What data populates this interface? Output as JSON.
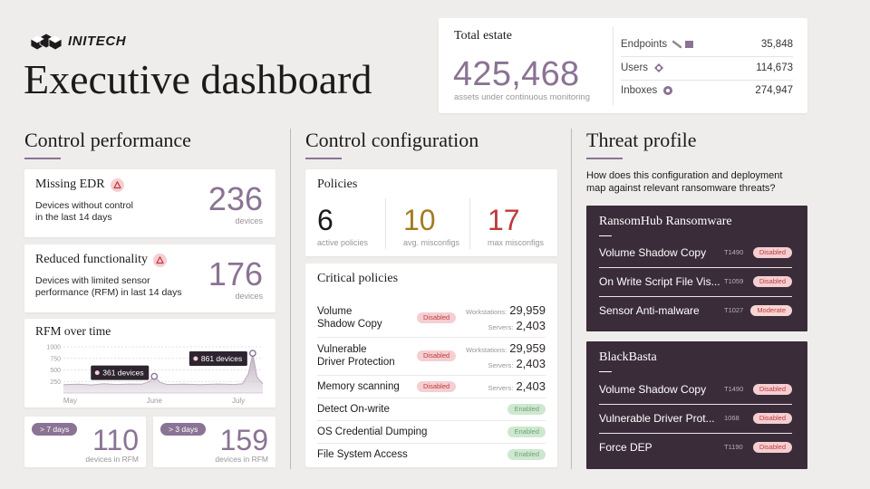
{
  "header": {
    "brand": "INITECH",
    "title": "Executive dashboard"
  },
  "total_estate": {
    "title": "Total estate",
    "value": "425,468",
    "caption": "assets under continuous monitoring",
    "breakdown": [
      {
        "label": "Endpoints",
        "value": "35,848"
      },
      {
        "label": "Users",
        "value": "114,673"
      },
      {
        "label": "Inboxes",
        "value": "274,947"
      }
    ]
  },
  "status_styles": {
    "Disabled": [
      "#f4cfd2",
      "#c0393b"
    ],
    "Enabled": [
      "#cfe7d0",
      "#6aa870"
    ],
    "Moderate": [
      "#f6d5d3",
      "#c0393b"
    ]
  },
  "control_performance": {
    "title": "Control performance",
    "cards": [
      {
        "title": "Missing EDR",
        "description": [
          "Devices without control",
          "in the last 14 days"
        ],
        "value": "236",
        "unit": "devices"
      },
      {
        "title": "Reduced functionality",
        "description": [
          "Devices with limited sensor",
          "performance (RFM) in last 14 days"
        ],
        "value": "176",
        "unit": "devices"
      }
    ],
    "rfm_chart": {
      "type": "line",
      "title": "RFM over time",
      "color": "#b9aabb",
      "x": [
        -0.08,
        0.1,
        0.25,
        0.4,
        0.55,
        0.7,
        0.85,
        0.93,
        1.0,
        1.07,
        1.15,
        1.35,
        1.55,
        1.75,
        1.95,
        2.05,
        2.12,
        2.17,
        2.22,
        2.29
      ],
      "values": [
        180,
        190,
        175,
        200,
        185,
        195,
        190,
        240,
        361,
        230,
        185,
        190,
        180,
        195,
        185,
        200,
        420,
        861,
        350,
        200
      ],
      "xlim": [
        -0.08,
        2.29
      ],
      "xticks": [
        {
          "value": 0,
          "label": "May"
        },
        {
          "value": 1,
          "label": "June"
        },
        {
          "value": 2,
          "label": "July"
        }
      ],
      "ylim": [
        0,
        1000
      ],
      "yticks": [
        250,
        500,
        750,
        1000
      ],
      "grid": true,
      "annotations": [
        {
          "x": 1.0,
          "y": 361,
          "label": "361 devices"
        },
        {
          "x": 2.17,
          "y": 861,
          "label": "861 devices"
        }
      ]
    },
    "duration_cards": [
      {
        "tag": "> 7 days",
        "value": "110",
        "unit": "devices in RFM"
      },
      {
        "tag": "> 3 days",
        "value": "159",
        "unit": "devices in RFM"
      }
    ]
  },
  "control_configuration": {
    "title": "Control configuration",
    "policies": {
      "title": "Policies",
      "stats": [
        {
          "value": "6",
          "label": "active policies",
          "color": "#1d1a1c"
        },
        {
          "value": "10",
          "label": "avg. misconfigs",
          "color": "#a47a1e"
        },
        {
          "value": "17",
          "label": "max misconfigs",
          "color": "#c0393b"
        }
      ]
    },
    "critical_policies": {
      "title": "Critical policies",
      "rows": [
        {
          "name": [
            "Volume",
            "Shadow Copy"
          ],
          "status": "Disabled",
          "counts": [
            {
              "label": "Workstations:",
              "value": "29,959"
            },
            {
              "label": "Servers:",
              "value": "2,403"
            }
          ]
        },
        {
          "name": [
            "Vulnerable",
            "Driver Protection"
          ],
          "status": "Disabled",
          "counts": [
            {
              "label": "Workstations:",
              "value": "29,959"
            },
            {
              "label": "Servers:",
              "value": "2,403"
            }
          ]
        },
        {
          "name": [
            "Memory scanning"
          ],
          "status": "Disabled",
          "counts": [
            {
              "label": "Servers:",
              "value": "2,403"
            }
          ]
        },
        {
          "name": [
            "Detect On-write"
          ],
          "status": "Enabled",
          "counts": []
        },
        {
          "name": [
            "OS Credential Dumping"
          ],
          "status": "Enabled",
          "counts": []
        },
        {
          "name": [
            "File System Access"
          ],
          "status": "Enabled",
          "counts": []
        }
      ]
    }
  },
  "threat_profile": {
    "title": "Threat profile",
    "question": [
      "How does this configuration and deployment",
      "map against relevant ransomware threats?"
    ],
    "threats": [
      {
        "name": "RansomHub Ransomware",
        "techniques": [
          {
            "name": "Volume Shadow Copy",
            "id": "T1490",
            "status": "Disabled"
          },
          {
            "name": "On Write Script File Vis...",
            "id": "T1059",
            "status": "Disabled"
          },
          {
            "name": "Sensor Anti-malware",
            "id": "T1027",
            "status": "Moderate"
          }
        ]
      },
      {
        "name": "BlackBasta",
        "techniques": [
          {
            "name": "Volume Shadow Copy",
            "id": "T1490",
            "status": "Disabled"
          },
          {
            "name": "Vulnerable Driver Prot...",
            "id": "1068",
            "status": "Disabled"
          },
          {
            "name": "Force DEP",
            "id": "T1190",
            "status": "Disabled"
          }
        ]
      }
    ]
  }
}
